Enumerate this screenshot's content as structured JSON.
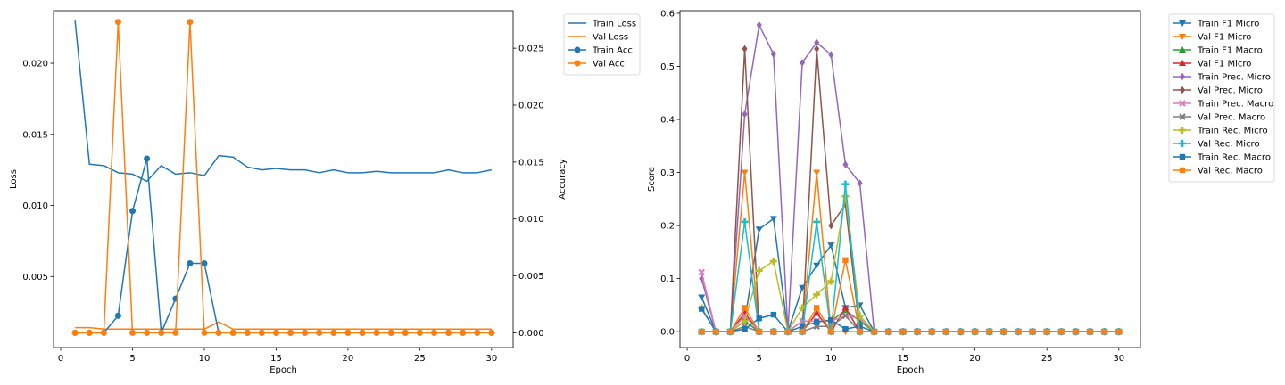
{
  "colors": {
    "blue": "#1f77b4",
    "orange": "#ff7f0e",
    "green": "#2ca02c",
    "red": "#d62728",
    "purple": "#9467bd",
    "brown": "#8c564b",
    "pink": "#e377c2",
    "gray": "#7f7f7f",
    "olive": "#bcbd22",
    "cyan": "#17becf"
  },
  "chart_data": [
    {
      "type": "line",
      "xlabel": "Epoch",
      "ylabel": "Loss",
      "y2label": "Accuracy",
      "xlim": [
        -0.5,
        31.5
      ],
      "ylim": [
        0.0,
        0.0237
      ],
      "y2lim": [
        -0.0013,
        0.0283
      ],
      "xticks": [
        0,
        5,
        10,
        15,
        20,
        25,
        30
      ],
      "yticks": [
        0.005,
        0.01,
        0.015,
        0.02
      ],
      "yticklabels": [
        "0.005",
        "0.010",
        "0.015",
        "0.020"
      ],
      "y2ticks": [
        0.0,
        0.005,
        0.01,
        0.015,
        0.02,
        0.025
      ],
      "y2ticklabels": [
        "0.000",
        "0.005",
        "0.010",
        "0.015",
        "0.020",
        "0.025"
      ],
      "legend_position": "outside-right",
      "grid": false,
      "x": [
        1,
        2,
        3,
        4,
        5,
        6,
        7,
        8,
        9,
        10,
        11,
        12,
        13,
        14,
        15,
        16,
        17,
        18,
        19,
        20,
        21,
        22,
        23,
        24,
        25,
        26,
        27,
        28,
        29,
        30
      ],
      "series": [
        {
          "name": "Train Loss",
          "axis": "left",
          "color": "blue",
          "marker": "none",
          "values": [
            0.023,
            0.0129,
            0.0128,
            0.0123,
            0.0122,
            0.0117,
            0.0128,
            0.0122,
            0.0123,
            0.0121,
            0.0135,
            0.0134,
            0.0127,
            0.0125,
            0.0126,
            0.0125,
            0.0125,
            0.0123,
            0.0125,
            0.0123,
            0.0123,
            0.0124,
            0.0123,
            0.0123,
            0.0123,
            0.0123,
            0.0125,
            0.0123,
            0.0123,
            0.0125
          ]
        },
        {
          "name": "Val Loss",
          "axis": "left",
          "color": "orange",
          "marker": "none",
          "values": [
            0.0014,
            0.0014,
            0.0013,
            0.0013,
            0.0013,
            0.0013,
            0.0013,
            0.0013,
            0.0013,
            0.0013,
            0.0018,
            0.0013,
            0.0013,
            0.0013,
            0.0013,
            0.0013,
            0.0013,
            0.0013,
            0.0013,
            0.0013,
            0.0013,
            0.0013,
            0.0013,
            0.0013,
            0.0013,
            0.0013,
            0.0013,
            0.0013,
            0.0013,
            0.0013
          ]
        },
        {
          "name": "Train Acc",
          "axis": "right",
          "color": "blue",
          "marker": "circle",
          "values": [
            0,
            0,
            0,
            0.0015,
            0.0107,
            0.0153,
            0,
            0.003,
            0.0061,
            0.0061,
            0,
            0,
            0,
            0,
            0,
            0,
            0,
            0,
            0,
            0,
            0,
            0,
            0,
            0,
            0,
            0,
            0,
            0,
            0,
            0
          ]
        },
        {
          "name": "Val Acc",
          "axis": "right",
          "color": "orange",
          "marker": "circle",
          "values": [
            0,
            0,
            0,
            0.0273,
            0,
            0,
            0,
            0,
            0.0273,
            0,
            0,
            0,
            0,
            0,
            0,
            0,
            0,
            0,
            0,
            0,
            0,
            0,
            0,
            0,
            0,
            0,
            0,
            0,
            0,
            0
          ]
        }
      ]
    },
    {
      "type": "line",
      "xlabel": "Epoch",
      "ylabel": "Score",
      "xlim": [
        -0.5,
        31.5
      ],
      "ylim": [
        -0.03,
        0.605
      ],
      "xticks": [
        0,
        5,
        10,
        15,
        20,
        25,
        30
      ],
      "yticks": [
        0.0,
        0.1,
        0.2,
        0.3,
        0.4,
        0.5,
        0.6
      ],
      "yticklabels": [
        "0.0",
        "0.1",
        "0.2",
        "0.3",
        "0.4",
        "0.5",
        "0.6"
      ],
      "legend_position": "outside-right",
      "grid": false,
      "x": [
        1,
        2,
        3,
        4,
        5,
        6,
        7,
        8,
        9,
        10,
        11,
        12,
        13,
        14,
        15,
        16,
        17,
        18,
        19,
        20,
        21,
        22,
        23,
        24,
        25,
        26,
        27,
        28,
        29,
        30
      ],
      "series": [
        {
          "name": "Train F1 Micro",
          "color": "blue",
          "marker": "tri-down",
          "values": [
            0.065,
            0,
            0,
            0.02,
            0.193,
            0.213,
            0,
            0.083,
            0.125,
            0.163,
            0.045,
            0.05,
            0,
            0,
            0,
            0,
            0,
            0,
            0,
            0,
            0,
            0,
            0,
            0,
            0,
            0,
            0,
            0,
            0,
            0
          ]
        },
        {
          "name": "Val F1 Micro",
          "color": "orange",
          "marker": "tri-down",
          "values": [
            0,
            0,
            0,
            0.3,
            0,
            0,
            0,
            0,
            0.3,
            0,
            0,
            0,
            0,
            0,
            0,
            0,
            0,
            0,
            0,
            0,
            0,
            0,
            0,
            0,
            0,
            0,
            0,
            0,
            0,
            0
          ]
        },
        {
          "name": "Train F1 Macro",
          "color": "green",
          "marker": "tri-up",
          "values": [
            0,
            0,
            0,
            0.02,
            0,
            0,
            0,
            0.02,
            0.02,
            0.02,
            0.04,
            0.02,
            0,
            0,
            0,
            0,
            0,
            0,
            0,
            0,
            0,
            0,
            0,
            0,
            0,
            0,
            0,
            0,
            0,
            0
          ]
        },
        {
          "name": "Val F1 Micro",
          "color": "red",
          "marker": "tri-up",
          "values": [
            0,
            0,
            0,
            0.035,
            0,
            0,
            0,
            0,
            0.035,
            0,
            0.045,
            0,
            0,
            0,
            0,
            0,
            0,
            0,
            0,
            0,
            0,
            0,
            0,
            0,
            0,
            0,
            0,
            0,
            0,
            0
          ]
        },
        {
          "name": "Train Prec. Micro",
          "color": "purple",
          "marker": "diamond",
          "values": [
            0.1,
            0,
            0,
            0.41,
            0.578,
            0.523,
            0,
            0.507,
            0.545,
            0.522,
            0.315,
            0.28,
            0,
            0,
            0,
            0,
            0,
            0,
            0,
            0,
            0,
            0,
            0,
            0,
            0,
            0,
            0,
            0,
            0,
            0
          ]
        },
        {
          "name": "Val Prec. Micro",
          "color": "brown",
          "marker": "diamond",
          "values": [
            0,
            0,
            0,
            0.533,
            0,
            0,
            0,
            0,
            0.533,
            0.2,
            0.24,
            0,
            0,
            0,
            0,
            0,
            0,
            0,
            0,
            0,
            0,
            0,
            0,
            0,
            0,
            0,
            0,
            0,
            0,
            0
          ]
        },
        {
          "name": "Train Prec. Macro",
          "color": "pink",
          "marker": "x",
          "values": [
            0.112,
            0,
            0,
            0.03,
            0,
            0,
            0,
            0.02,
            0.02,
            0.02,
            0.03,
            0.025,
            0,
            0,
            0,
            0,
            0,
            0,
            0,
            0,
            0,
            0,
            0,
            0,
            0,
            0,
            0,
            0,
            0,
            0
          ]
        },
        {
          "name": "Val Prec. Macro",
          "color": "gray",
          "marker": "x",
          "values": [
            0,
            0,
            0,
            0.01,
            0,
            0,
            0,
            0,
            0.01,
            0.01,
            0.03,
            0,
            0,
            0,
            0,
            0,
            0,
            0,
            0,
            0,
            0,
            0,
            0,
            0,
            0,
            0,
            0,
            0,
            0,
            0
          ]
        },
        {
          "name": "Train Rec. Micro",
          "color": "olive",
          "marker": "plus",
          "values": [
            0.045,
            0,
            0,
            0.02,
            0.115,
            0.133,
            0,
            0.045,
            0.07,
            0.095,
            0.255,
            0.03,
            0,
            0,
            0,
            0,
            0,
            0,
            0,
            0,
            0,
            0,
            0,
            0,
            0,
            0,
            0,
            0,
            0,
            0
          ]
        },
        {
          "name": "Val Rec. Micro",
          "color": "cyan",
          "marker": "plus",
          "values": [
            0,
            0,
            0,
            0.207,
            0,
            0,
            0,
            0,
            0.207,
            0,
            0.278,
            0,
            0,
            0,
            0,
            0,
            0,
            0,
            0,
            0,
            0,
            0,
            0,
            0,
            0,
            0,
            0,
            0,
            0,
            0
          ]
        },
        {
          "name": "Train Rec. Macro",
          "color": "blue",
          "marker": "square",
          "values": [
            0.043,
            0,
            0,
            0.005,
            0.025,
            0.032,
            0,
            0.01,
            0.018,
            0.022,
            0.005,
            0.01,
            0,
            0,
            0,
            0,
            0,
            0,
            0,
            0,
            0,
            0,
            0,
            0,
            0,
            0,
            0,
            0,
            0,
            0
          ]
        },
        {
          "name": "Val Rec. Macro",
          "color": "orange",
          "marker": "square",
          "values": [
            0,
            0,
            0,
            0.045,
            0,
            0,
            0,
            0,
            0.045,
            0,
            0.135,
            0,
            0,
            0,
            0,
            0,
            0,
            0,
            0,
            0,
            0,
            0,
            0,
            0,
            0,
            0,
            0,
            0,
            0,
            0
          ]
        }
      ]
    }
  ]
}
